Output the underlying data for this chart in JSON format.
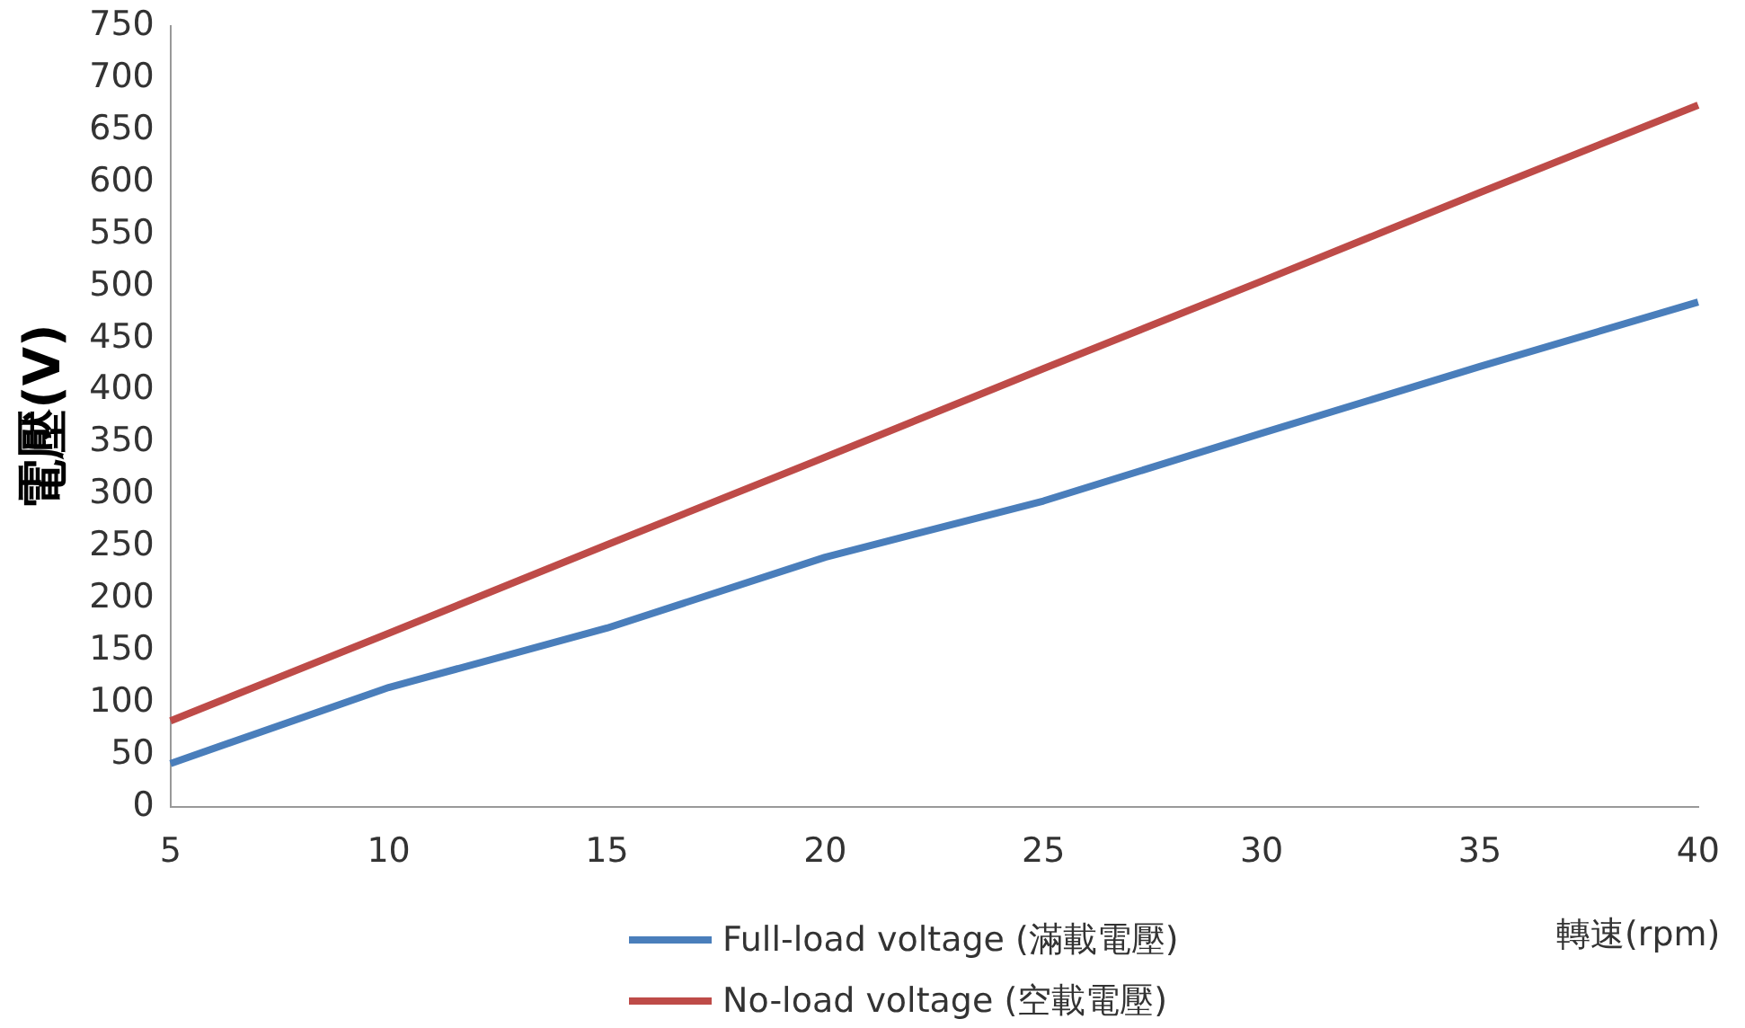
{
  "chart_data": {
    "type": "line",
    "xlabel": "轉速(rpm)",
    "ylabel": "電壓(V)",
    "categories": [
      "5",
      "10",
      "15",
      "20",
      "25",
      "30",
      "35",
      "40"
    ],
    "series": [
      {
        "name": "Full-load voltage (滿載電壓)",
        "color": "#4a7ebb",
        "values": [
          42,
          115,
          172,
          240,
          294,
          359,
          423,
          485
        ]
      },
      {
        "name": "No-load voltage (空載電壓)",
        "color": "#be4b48",
        "values": [
          83,
          167,
          252,
          336,
          421,
          505,
          590,
          674
        ]
      }
    ],
    "ylim": [
      0,
      750
    ],
    "yticks": [
      0,
      50,
      100,
      150,
      200,
      250,
      300,
      350,
      400,
      450,
      500,
      550,
      600,
      650,
      700,
      750
    ],
    "grid": false,
    "legend": "bottom",
    "marker": "none",
    "line_style": "solid"
  }
}
